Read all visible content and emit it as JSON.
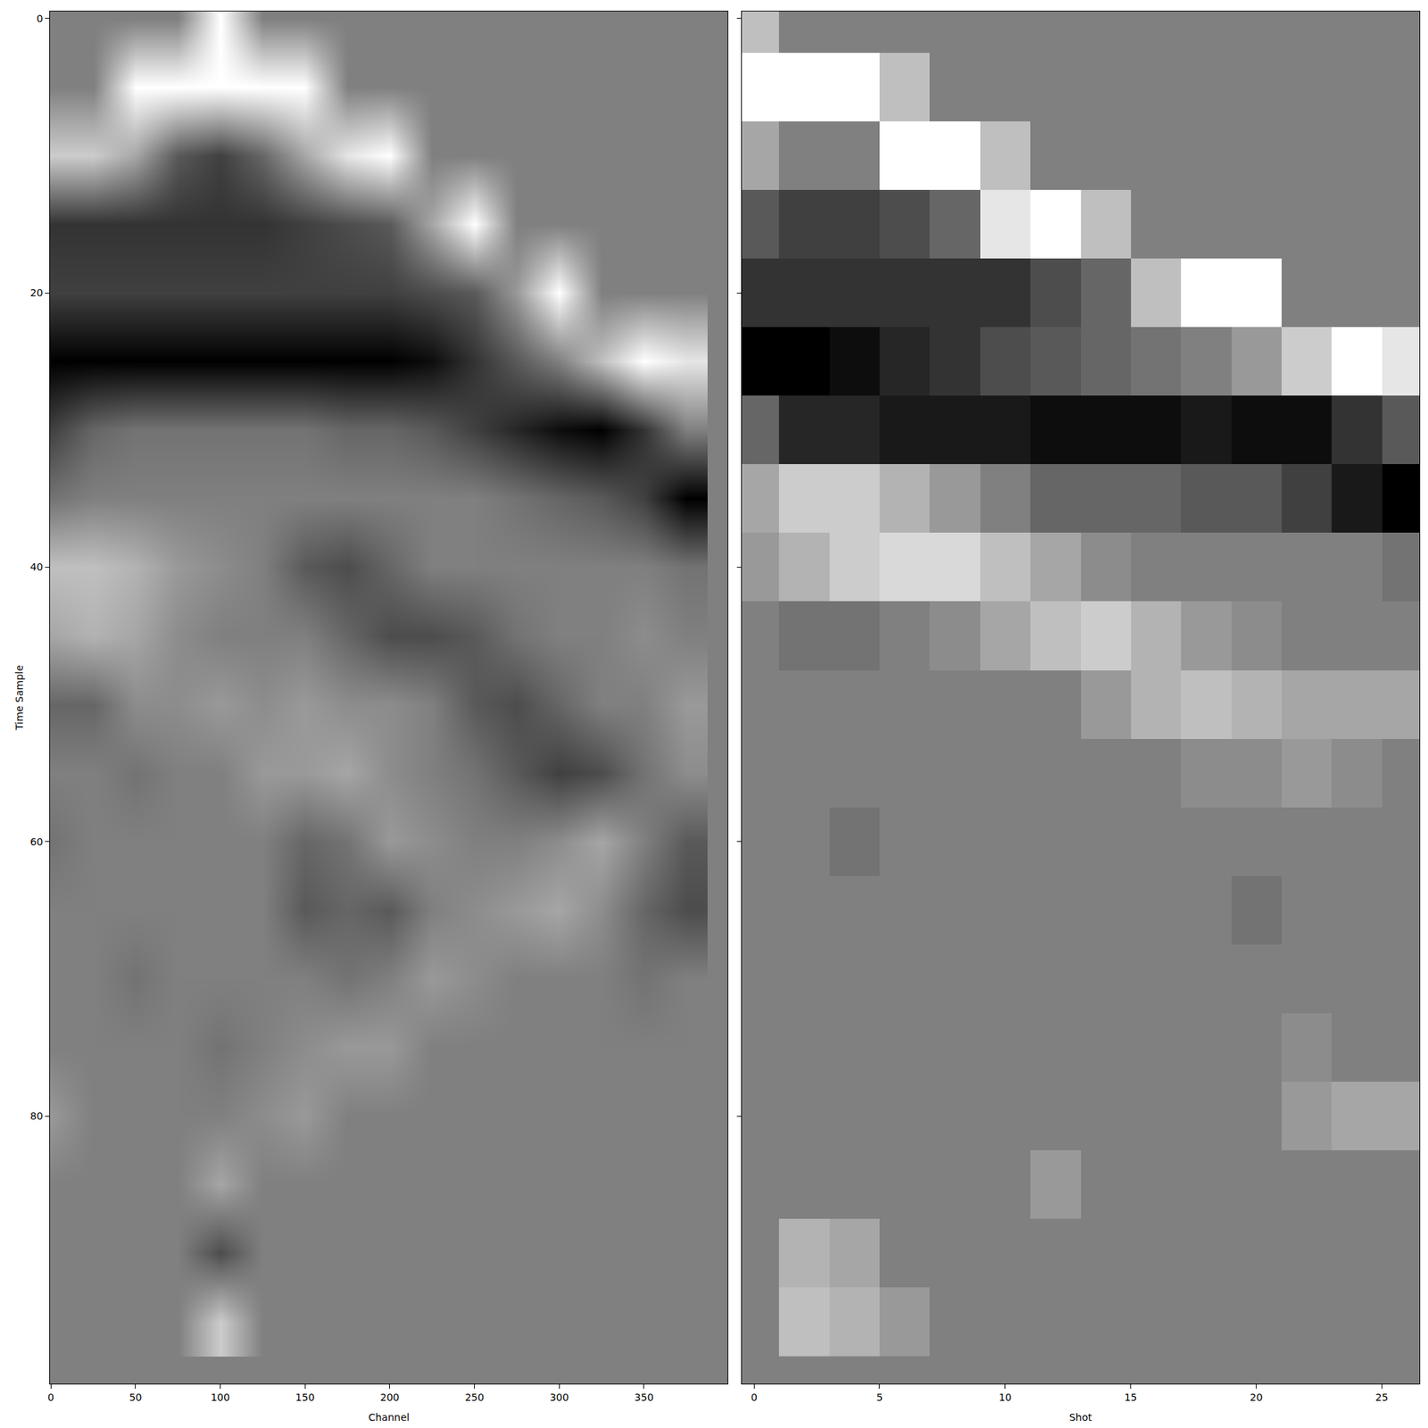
{
  "chart_data": [
    {
      "type": "heatmap",
      "x_label": "Channel",
      "y_label": "Time Sample",
      "x": [
        0,
        25,
        50,
        75,
        100,
        125,
        150,
        175,
        200,
        225,
        250,
        275,
        300,
        325,
        350,
        375
      ],
      "y": [
        0,
        5,
        10,
        15,
        20,
        25,
        30,
        35,
        40,
        45,
        50,
        55,
        60,
        65,
        70,
        75,
        80,
        85,
        90,
        95
      ],
      "xlim": [
        -0.5,
        399.5
      ],
      "xticks": [
        0,
        50,
        100,
        150,
        200,
        250,
        300,
        350
      ],
      "ylim": [
        -0.5,
        99.5
      ],
      "yticks": [
        0,
        20,
        40,
        60,
        80
      ],
      "zlim": [
        -1,
        1
      ],
      "z": [
        [
          0,
          0,
          0,
          0,
          1,
          0,
          0,
          0,
          0,
          0,
          0,
          0,
          0,
          0,
          0,
          0
        ],
        [
          0,
          0,
          1,
          1,
          1,
          1,
          1,
          0,
          0,
          0,
          0,
          0,
          0,
          0,
          0,
          0
        ],
        [
          0.6,
          0.6,
          0.3,
          -0.3,
          -0.5,
          -0.2,
          0.3,
          0.8,
          1,
          0,
          0,
          0,
          0,
          0,
          0,
          0
        ],
        [
          -0.6,
          -0.6,
          -0.6,
          -0.6,
          -0.6,
          -0.6,
          -0.5,
          -0.4,
          -0.3,
          0.3,
          1,
          0,
          0,
          0,
          0,
          0
        ],
        [
          -0.5,
          -0.5,
          -0.5,
          -0.5,
          -0.5,
          -0.5,
          -0.5,
          -0.5,
          -0.5,
          -0.4,
          -0.3,
          0.2,
          1,
          0,
          0,
          0
        ],
        [
          -1,
          -1,
          -1,
          -1,
          -1,
          -1,
          -1,
          -1,
          -1,
          -0.9,
          -0.6,
          -0.3,
          0,
          0.5,
          1,
          0.8
        ],
        [
          -0.5,
          -0.2,
          -0.1,
          -0.1,
          -0.1,
          -0.1,
          -0.1,
          -0.2,
          -0.2,
          -0.3,
          -0.5,
          -0.7,
          -0.9,
          -1,
          -0.6,
          0
        ],
        [
          -0.1,
          0,
          0,
          0,
          0,
          0,
          0,
          0,
          0,
          0,
          0,
          -0.1,
          -0.2,
          -0.3,
          -0.5,
          -1
        ],
        [
          0.5,
          0.5,
          0.4,
          0.2,
          0.1,
          0,
          -0.3,
          -0.4,
          -0.2,
          0,
          0,
          0,
          0,
          0,
          0,
          -0.1
        ],
        [
          0.3,
          0.4,
          0.3,
          0.1,
          0,
          0,
          0,
          -0.2,
          -0.4,
          -0.4,
          -0.3,
          -0.1,
          0,
          0,
          0.1,
          0
        ],
        [
          -0.2,
          -0.2,
          0.1,
          0.1,
          0.2,
          0.1,
          0.2,
          0.1,
          0.1,
          0,
          -0.3,
          -0.4,
          -0.2,
          0,
          0,
          0.2
        ],
        [
          0,
          0,
          -0.1,
          0,
          0,
          0.2,
          0.2,
          0.3,
          0.1,
          0,
          -0.1,
          -0.3,
          -0.5,
          -0.4,
          -0.1,
          0.1
        ],
        [
          -0.1,
          0,
          0,
          0,
          0,
          0,
          -0.2,
          -0.1,
          0.2,
          0.1,
          0,
          0,
          0.1,
          0.3,
          0,
          -0.3
        ],
        [
          0,
          0,
          0,
          0,
          0,
          0,
          -0.3,
          -0.2,
          -0.3,
          0,
          0.1,
          0.2,
          0.3,
          0.1,
          -0.2,
          -0.4
        ],
        [
          0,
          0,
          -0.1,
          0,
          0,
          0,
          0,
          -0.1,
          0,
          0.2,
          0.1,
          0,
          0,
          0,
          -0.1,
          0
        ],
        [
          0,
          0,
          0,
          0,
          -0.1,
          0,
          0.1,
          0.2,
          0.2,
          0,
          0,
          0,
          0,
          0,
          0,
          0
        ],
        [
          0.2,
          0,
          0,
          0,
          0,
          0.1,
          0.2,
          0,
          0,
          0,
          0,
          0,
          0,
          0,
          0,
          0
        ],
        [
          0,
          0,
          0,
          0,
          0.3,
          0,
          0,
          0,
          0,
          0,
          0,
          0,
          0,
          0,
          0,
          0
        ],
        [
          0,
          0,
          0,
          0,
          -0.4,
          0,
          0,
          0,
          0,
          0,
          0,
          0,
          0,
          0,
          0,
          0
        ],
        [
          0,
          0,
          0,
          0,
          0.6,
          0,
          0,
          0,
          0,
          0,
          0,
          0,
          0,
          0,
          0,
          0
        ]
      ]
    },
    {
      "type": "heatmap",
      "x_label": "Shot",
      "x": [
        0,
        2,
        4,
        6,
        8,
        10,
        12,
        14,
        16,
        18,
        20,
        22,
        24,
        26
      ],
      "y": [
        0,
        5,
        10,
        15,
        20,
        25,
        30,
        35,
        40,
        45,
        50,
        55,
        60,
        65,
        70,
        75,
        80,
        85,
        90,
        95
      ],
      "xlim": [
        -0.5,
        26.5
      ],
      "xticks": [
        0,
        5,
        10,
        15,
        20,
        25
      ],
      "ylim": [
        -0.5,
        99.5
      ],
      "yticks": [
        0,
        20,
        40,
        60,
        80
      ],
      "tick_labels": "x",
      "zlim": [
        -1,
        1
      ],
      "z": [
        [
          0.5,
          0,
          0,
          0,
          0,
          0,
          0,
          0,
          0,
          0,
          0,
          0,
          0,
          0
        ],
        [
          1,
          1,
          1,
          0.5,
          0,
          0,
          0,
          0,
          0,
          0,
          0,
          0,
          0,
          0
        ],
        [
          0.3,
          0,
          0,
          1,
          1,
          0.5,
          0,
          0,
          0,
          0,
          0,
          0,
          0,
          0
        ],
        [
          -0.3,
          -0.5,
          -0.5,
          -0.4,
          -0.2,
          0.8,
          1,
          0.5,
          0,
          0,
          0,
          0,
          0,
          0
        ],
        [
          -0.6,
          -0.6,
          -0.6,
          -0.6,
          -0.6,
          -0.6,
          -0.4,
          -0.2,
          0.5,
          1,
          1,
          0,
          0,
          0
        ],
        [
          -1,
          -1,
          -0.9,
          -0.7,
          -0.6,
          -0.4,
          -0.3,
          -0.2,
          -0.1,
          0,
          0.2,
          0.6,
          1,
          0.8
        ],
        [
          -0.2,
          -0.7,
          -0.7,
          -0.8,
          -0.8,
          -0.8,
          -0.9,
          -0.9,
          -0.9,
          -0.8,
          -0.9,
          -0.9,
          -0.6,
          -0.3
        ],
        [
          0.3,
          0.6,
          0.6,
          0.4,
          0.2,
          0,
          -0.2,
          -0.2,
          -0.2,
          -0.3,
          -0.3,
          -0.5,
          -0.8,
          -1
        ],
        [
          0.2,
          0.4,
          0.6,
          0.7,
          0.7,
          0.5,
          0.3,
          0.1,
          0,
          0,
          0,
          0,
          0,
          -0.1
        ],
        [
          0,
          -0.1,
          -0.1,
          0,
          0.1,
          0.3,
          0.5,
          0.6,
          0.4,
          0.2,
          0.1,
          0,
          0,
          0
        ],
        [
          0,
          0,
          0,
          0,
          0,
          0,
          0,
          0.2,
          0.4,
          0.5,
          0.4,
          0.3,
          0.3,
          0.3
        ],
        [
          0,
          0,
          0,
          0,
          0,
          0,
          0,
          0,
          0,
          0.1,
          0.1,
          0.2,
          0.1,
          0
        ],
        [
          0,
          0,
          -0.1,
          0,
          0,
          0,
          0,
          0,
          0,
          0,
          0,
          0,
          0,
          0
        ],
        [
          0,
          0,
          0,
          0,
          0,
          0,
          0,
          0,
          0,
          0,
          -0.1,
          0,
          0,
          0
        ],
        [
          0,
          0,
          0,
          0,
          0,
          0,
          0,
          0,
          0,
          0,
          0,
          0,
          0,
          0
        ],
        [
          0,
          0,
          0,
          0,
          0,
          0,
          0,
          0,
          0,
          0,
          0,
          0.1,
          0,
          0
        ],
        [
          0,
          0,
          0,
          0,
          0,
          0,
          0,
          0,
          0,
          0,
          0,
          0.2,
          0.3,
          0.3
        ],
        [
          0,
          0,
          0,
          0,
          0,
          0,
          0.2,
          0,
          0,
          0,
          0,
          0,
          0,
          0
        ],
        [
          0,
          0.4,
          0.3,
          0,
          0,
          0,
          0,
          0,
          0,
          0,
          0,
          0,
          0,
          0
        ],
        [
          0,
          0.5,
          0.4,
          0.2,
          0,
          0,
          0,
          0,
          0,
          0,
          0,
          0,
          0,
          0
        ]
      ]
    }
  ]
}
